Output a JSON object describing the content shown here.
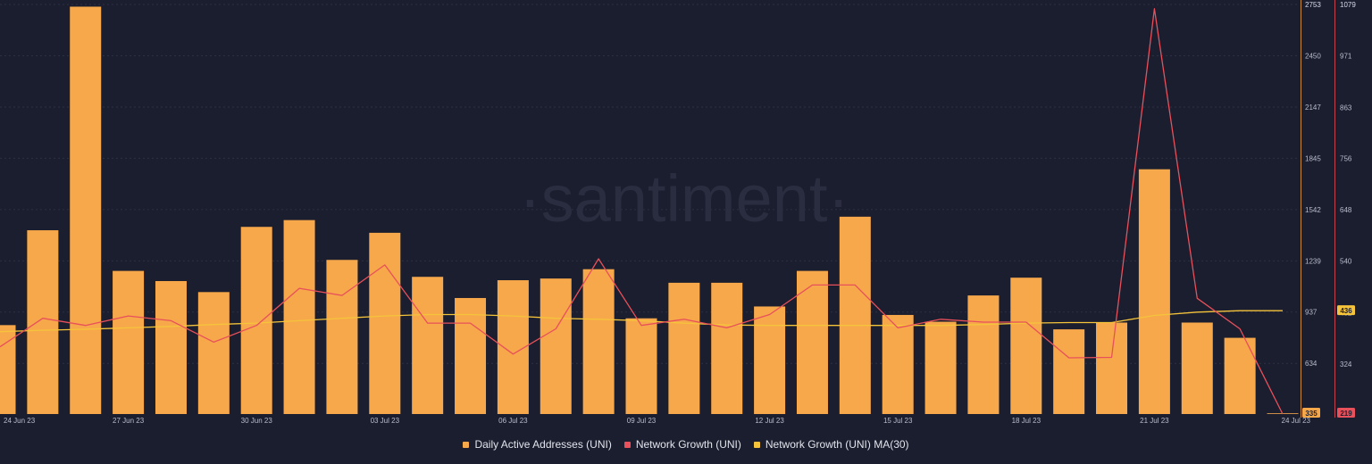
{
  "watermark": "·santiment·",
  "legend": [
    {
      "label": "Daily Active Addresses (UNI)",
      "color": "#f7a84b"
    },
    {
      "label": "Network Growth (UNI)",
      "color": "#e8505b"
    },
    {
      "label": "Network Growth (UNI) MA(30)",
      "color": "#f5c43b"
    }
  ],
  "chart_data": {
    "type": "bar",
    "x_ticks": [
      "24 Jun 23",
      "27 Jun 23",
      "30 Jun 23",
      "03 Jul 23",
      "06 Jul 23",
      "09 Jul 23",
      "12 Jul 23",
      "15 Jul 23",
      "18 Jul 23",
      "21 Jul 23",
      "24 Jul 23"
    ],
    "categories": [
      "24 Jun 23",
      "25 Jun 23",
      "26 Jun 23",
      "27 Jun 23",
      "28 Jun 23",
      "29 Jun 23",
      "30 Jun 23",
      "01 Jul 23",
      "02 Jul 23",
      "03 Jul 23",
      "04 Jul 23",
      "05 Jul 23",
      "06 Jul 23",
      "07 Jul 23",
      "08 Jul 23",
      "09 Jul 23",
      "10 Jul 23",
      "11 Jul 23",
      "12 Jul 23",
      "13 Jul 23",
      "14 Jul 23",
      "15 Jul 23",
      "16 Jul 23",
      "17 Jul 23",
      "18 Jul 23",
      "19 Jul 23",
      "20 Jul 23",
      "21 Jul 23",
      "22 Jul 23",
      "23 Jul 23",
      "24 Jul 23"
    ],
    "series": [
      {
        "name": "Daily Active Addresses (UNI)",
        "type": "bar",
        "axis": "left",
        "color": "#f7a84b",
        "values": [
          860,
          1420,
          2740,
          1180,
          1120,
          1055,
          1440,
          1480,
          1245,
          1405,
          1145,
          1020,
          1125,
          1135,
          1190,
          900,
          1110,
          1110,
          970,
          1180,
          1500,
          920,
          880,
          1035,
          1140,
          835,
          875,
          1780,
          875,
          785,
          335
        ]
      },
      {
        "name": "Network Growth (UNI)",
        "type": "line",
        "axis": "right",
        "color": "#e8505b",
        "values": [
          360,
          420,
          405,
          425,
          415,
          370,
          405,
          483,
          468,
          532,
          410,
          410,
          345,
          398,
          545,
          405,
          418,
          400,
          428,
          490,
          490,
          400,
          418,
          412,
          412,
          337,
          338,
          1070,
          462,
          398,
          219
        ]
      },
      {
        "name": "Network Growth (UNI) MA(30)",
        "type": "line",
        "axis": "right",
        "color": "#f5c43b",
        "values": [
          392,
          395,
          397,
          400,
          403,
          407,
          410,
          415,
          420,
          425,
          428,
          428,
          425,
          420,
          418,
          415,
          410,
          406,
          405,
          405,
          405,
          405,
          405,
          407,
          410,
          411,
          411,
          426,
          433,
          436,
          436
        ]
      }
    ],
    "left_axis": {
      "ticks": [
        634,
        937,
        1239,
        1542,
        1845,
        2147,
        2450,
        2753
      ],
      "min": 335,
      "max": 2753,
      "current": "335",
      "current_color": "#f7a84b"
    },
    "right_axis": {
      "ticks": [
        324,
        432,
        540,
        648,
        756,
        863,
        971,
        1079
      ],
      "min": 219,
      "max": 1079,
      "current": "219",
      "current_color": "#e8505b",
      "ma_current": "436",
      "ma_color": "#f5c43b"
    },
    "grid": "horizontal-dashed"
  }
}
